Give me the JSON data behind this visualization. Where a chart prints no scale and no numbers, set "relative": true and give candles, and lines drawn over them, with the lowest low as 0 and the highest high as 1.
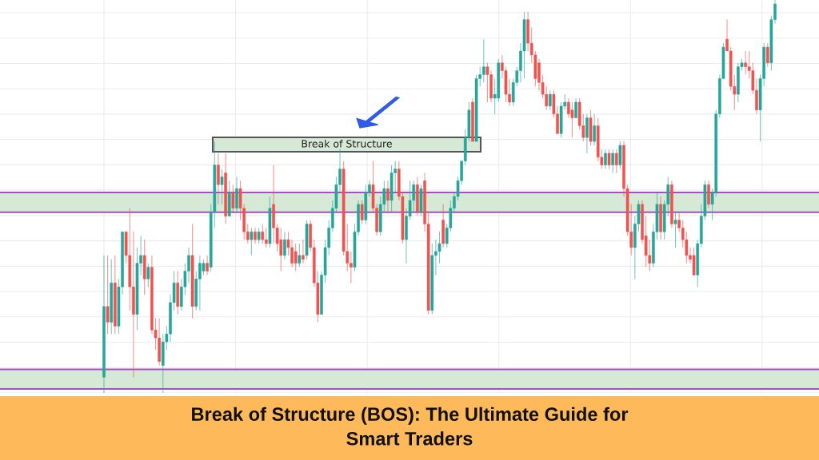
{
  "chart_data": {
    "type": "candlestick",
    "title": "Break of Structure (BOS): The Ultimate Guide for\nSmart Traders",
    "relative": true,
    "grid": true,
    "annotations": [
      "Break of Structure"
    ],
    "bands": [
      {
        "axis": "y",
        "from": 0.46,
        "to": 0.51,
        "color": "#d6e8d6"
      },
      {
        "axis": "y",
        "from": 0.01,
        "to": 0.06,
        "color": "#d6e8d6"
      }
    ],
    "ref_lines": [
      {
        "axis": "y",
        "value": 0.46,
        "color": "#a64fc4"
      },
      {
        "axis": "y",
        "value": 0.51,
        "color": "#a64fc4"
      },
      {
        "axis": "y",
        "value": 0.01,
        "color": "#a64fc4"
      },
      {
        "axis": "y",
        "value": 0.06,
        "color": "#a64fc4"
      }
    ],
    "categories": [
      null,
      null,
      null,
      null,
      null,
      null,
      null,
      null,
      null,
      null,
      null,
      null,
      null,
      null,
      null,
      null,
      null,
      null,
      null,
      null,
      null,
      null,
      null,
      null,
      null,
      null,
      null,
      null,
      null,
      null,
      null,
      null,
      null,
      null,
      null,
      null,
      null,
      null,
      null,
      null,
      null,
      null,
      null,
      null,
      null,
      null,
      null,
      null,
      null,
      null,
      null,
      null,
      null,
      null,
      null,
      null,
      null,
      null,
      null,
      null,
      null,
      null,
      null,
      null,
      null,
      null,
      null,
      null,
      null,
      null,
      null,
      null,
      null,
      null,
      null,
      null,
      null,
      null,
      null,
      null,
      null,
      null,
      null,
      null,
      null,
      null,
      null,
      null,
      null,
      null,
      null,
      null,
      null,
      null,
      null,
      null,
      null,
      null,
      null,
      null,
      null,
      null,
      null,
      null,
      null,
      null,
      null,
      null,
      null,
      null,
      null,
      null,
      null,
      null,
      null,
      null,
      null,
      null,
      null,
      null,
      null,
      null,
      null,
      null,
      null,
      null,
      null,
      null,
      null,
      null,
      null,
      null,
      null,
      null,
      null,
      null,
      null,
      null,
      null,
      null,
      null,
      null,
      null,
      null,
      null,
      null,
      null,
      null,
      null,
      null,
      null,
      null,
      null,
      null,
      null,
      null,
      null,
      null,
      null,
      null,
      null,
      null,
      null,
      null,
      null,
      null,
      null,
      null,
      null,
      null,
      null,
      null,
      null,
      null,
      null,
      null,
      null,
      null,
      null,
      null,
      null,
      null,
      null
    ],
    "ohlc": [
      [
        0.04,
        0.35,
        0,
        0.22
      ],
      [
        0.22,
        0.35,
        0.15,
        0.18
      ],
      [
        0.18,
        0.34,
        0.15,
        0.28
      ],
      [
        0.28,
        0.35,
        0.15,
        0.17
      ],
      [
        0.17,
        0.29,
        0.15,
        0.27
      ],
      [
        0.27,
        0.41,
        0.25,
        0.41
      ],
      [
        0.41,
        0.41,
        0.33,
        0.35
      ],
      [
        0.35,
        0.47,
        0.21,
        0.27
      ],
      [
        0.27,
        0.41,
        0.04,
        0.2
      ],
      [
        0.2,
        0.37,
        0.16,
        0.33
      ],
      [
        0.33,
        0.4,
        0.3,
        0.35
      ],
      [
        0.35,
        0.39,
        0.25,
        0.29
      ],
      [
        0.29,
        0.33,
        0.27,
        0.32
      ],
      [
        0.32,
        0.35,
        0.15,
        0.16
      ],
      [
        0.16,
        0.19,
        0.11,
        0.14
      ],
      [
        0.14,
        0.19,
        0.07,
        0.08
      ],
      [
        0.07,
        0.15,
        0,
        0.13
      ],
      [
        0.13,
        0.17,
        0.11,
        0.15
      ],
      [
        0.15,
        0.25,
        0.13,
        0.23
      ],
      [
        0.23,
        0.31,
        0.21,
        0.28
      ],
      [
        0.28,
        0.31,
        0.2,
        0.22
      ],
      [
        0.22,
        0.29,
        0.21,
        0.27
      ],
      [
        0.27,
        0.33,
        0.25,
        0.31
      ],
      [
        0.31,
        0.37,
        0.28,
        0.35
      ],
      [
        0.35,
        0.43,
        0.19,
        0.22
      ],
      [
        0.22,
        0.31,
        0.21,
        0.29
      ],
      [
        0.29,
        0.35,
        0.21,
        0.33
      ],
      [
        0.31,
        0.34,
        0.3,
        0.33
      ],
      [
        0.33,
        0.35,
        0.3,
        0.31
      ],
      [
        0.32,
        0.48,
        0.31,
        0.46
      ],
      [
        0.46,
        0.64,
        0.42,
        0.58
      ],
      [
        0.58,
        0.61,
        0.48,
        0.53
      ],
      [
        0.53,
        0.57,
        0.48,
        0.55
      ],
      [
        0.56,
        0.61,
        0.43,
        0.45
      ],
      [
        0.45,
        0.54,
        0.45,
        0.51
      ],
      [
        0.51,
        0.53,
        0.46,
        0.47
      ],
      [
        0.47,
        0.55,
        0.46,
        0.52
      ],
      [
        0.52,
        0.54,
        0.44,
        0.47
      ],
      [
        0.47,
        0.48,
        0.39,
        0.41
      ],
      [
        0.41,
        0.43,
        0.38,
        0.39
      ],
      [
        0.39,
        0.42,
        0.35,
        0.41
      ],
      [
        0.41,
        0.42,
        0.38,
        0.39
      ],
      [
        0.39,
        0.42,
        0.38,
        0.41
      ],
      [
        0.41,
        0.43,
        0.38,
        0.39
      ],
      [
        0.39,
        0.42,
        0.37,
        0.38
      ],
      [
        0.38,
        0.5,
        0.37,
        0.47
      ],
      [
        0.48,
        0.58,
        0.38,
        0.42
      ],
      [
        0.42,
        0.43,
        0.36,
        0.38
      ],
      [
        0.39,
        0.42,
        0.31,
        0.35
      ],
      [
        0.35,
        0.41,
        0.34,
        0.39
      ],
      [
        0.39,
        0.41,
        0.35,
        0.37
      ],
      [
        0.37,
        0.39,
        0.32,
        0.33
      ],
      [
        0.36,
        0.38,
        0.31,
        0.33
      ],
      [
        0.33,
        0.38,
        0.32,
        0.35
      ],
      [
        0.35,
        0.39,
        0.33,
        0.34
      ],
      [
        0.35,
        0.44,
        0.34,
        0.43
      ],
      [
        0.43,
        0.44,
        0.36,
        0.37
      ],
      [
        0.37,
        0.39,
        0.27,
        0.28
      ],
      [
        0.28,
        0.31,
        0.18,
        0.2
      ],
      [
        0.2,
        0.31,
        0.2,
        0.3
      ],
      [
        0.3,
        0.39,
        0.28,
        0.37
      ],
      [
        0.37,
        0.44,
        0.35,
        0.42
      ],
      [
        0.42,
        0.49,
        0.41,
        0.47
      ],
      [
        0.47,
        0.55,
        0.46,
        0.53
      ],
      [
        0.53,
        0.62,
        0.51,
        0.57
      ],
      [
        0.57,
        0.59,
        0.35,
        0.36
      ],
      [
        0.36,
        0.43,
        0.31,
        0.33
      ],
      [
        0.33,
        0.36,
        0.28,
        0.32
      ],
      [
        0.32,
        0.43,
        0.31,
        0.41
      ],
      [
        0.41,
        0.49,
        0.4,
        0.48
      ],
      [
        0.48,
        0.49,
        0.43,
        0.44
      ],
      [
        0.44,
        0.53,
        0.43,
        0.51
      ],
      [
        0.51,
        0.54,
        0.5,
        0.53
      ],
      [
        0.53,
        0.59,
        0.46,
        0.47
      ],
      [
        0.47,
        0.48,
        0.4,
        0.41
      ],
      [
        0.41,
        0.5,
        0.4,
        0.48
      ],
      [
        0.48,
        0.54,
        0.46,
        0.52
      ],
      [
        0.52,
        0.54,
        0.46,
        0.49
      ],
      [
        0.49,
        0.58,
        0.46,
        0.56
      ],
      [
        0.56,
        0.59,
        0.51,
        0.57
      ],
      [
        0.57,
        0.59,
        0.49,
        0.5
      ],
      [
        0.5,
        0.51,
        0.38,
        0.39
      ],
      [
        0.39,
        0.47,
        0.33,
        0.45
      ],
      [
        0.45,
        0.54,
        0.44,
        0.49
      ],
      [
        0.49,
        0.54,
        0.46,
        0.53
      ],
      [
        0.53,
        0.55,
        0.45,
        0.46
      ],
      [
        0.46,
        0.53,
        0.45,
        0.52
      ],
      [
        0.54,
        0.56,
        0.41,
        0.43
      ],
      [
        0.43,
        0.46,
        0.2,
        0.21
      ],
      [
        0.21,
        0.38,
        0.2,
        0.35
      ],
      [
        0.35,
        0.39,
        0.3,
        0.36
      ],
      [
        0.36,
        0.41,
        0.33,
        0.38
      ],
      [
        0.44,
        0.48,
        0.37,
        0.38
      ],
      [
        0.38,
        0.43,
        0.37,
        0.42
      ],
      [
        0.42,
        0.49,
        0.41,
        0.47
      ],
      [
        0.47,
        0.51,
        0.46,
        0.5
      ],
      [
        0.5,
        0.55,
        0.49,
        0.54
      ],
      [
        0.54,
        0.59,
        0.53,
        0.59
      ],
      [
        0.59,
        0.67,
        0.58,
        0.65
      ],
      [
        0.65,
        0.74,
        0.64,
        0.72
      ],
      [
        0.74,
        0.75,
        0.64,
        0.64
      ],
      [
        0.64,
        0.81,
        0.64,
        0.8
      ],
      [
        0.8,
        0.83,
        0.78,
        0.81
      ],
      [
        0.81,
        0.9,
        0.79,
        0.83
      ],
      [
        0.83,
        0.84,
        0.74,
        0.81
      ],
      [
        0.81,
        0.82,
        0.74,
        0.75
      ],
      [
        0.75,
        0.8,
        0.71,
        0.76
      ],
      [
        0.75,
        0.85,
        0.74,
        0.84
      ],
      [
        0.84,
        0.86,
        0.8,
        0.82
      ],
      [
        0.82,
        0.83,
        0.74,
        0.76
      ],
      [
        0.76,
        0.8,
        0.73,
        0.74
      ],
      [
        0.74,
        0.8,
        0.73,
        0.79
      ],
      [
        0.79,
        0.83,
        0.78,
        0.82
      ],
      [
        0.82,
        0.89,
        0.79,
        0.87
      ],
      [
        0.87,
        0.97,
        0.8,
        0.95
      ],
      [
        0.95,
        0.97,
        0.87,
        0.89
      ],
      [
        0.89,
        0.93,
        0.84,
        0.86
      ],
      [
        0.86,
        0.87,
        0.78,
        0.8
      ],
      [
        0.84,
        0.85,
        0.77,
        0.79
      ],
      [
        0.79,
        0.81,
        0.75,
        0.76
      ],
      [
        0.76,
        0.78,
        0.72,
        0.73
      ],
      [
        0.73,
        0.77,
        0.72,
        0.76
      ],
      [
        0.76,
        0.77,
        0.7,
        0.71
      ],
      [
        0.71,
        0.73,
        0.66,
        0.66
      ],
      [
        0.66,
        0.74,
        0.65,
        0.73
      ],
      [
        0.73,
        0.76,
        0.72,
        0.74
      ],
      [
        0.74,
        0.75,
        0.7,
        0.71
      ],
      [
        0.72,
        0.74,
        0.65,
        0.7
      ],
      [
        0.7,
        0.75,
        0.7,
        0.74
      ],
      [
        0.74,
        0.75,
        0.67,
        0.68
      ],
      [
        0.68,
        0.71,
        0.64,
        0.65
      ],
      [
        0.65,
        0.71,
        0.61,
        0.7
      ],
      [
        0.7,
        0.72,
        0.63,
        0.64
      ],
      [
        0.64,
        0.71,
        0.63,
        0.68
      ],
      [
        0.68,
        0.7,
        0.59,
        0.6
      ],
      [
        0.6,
        0.62,
        0.57,
        0.58
      ],
      [
        0.58,
        0.62,
        0.57,
        0.61
      ],
      [
        0.61,
        0.62,
        0.57,
        0.58
      ],
      [
        0.58,
        0.62,
        0.56,
        0.61
      ],
      [
        0.61,
        0.62,
        0.56,
        0.58
      ],
      [
        0.58,
        0.64,
        0.57,
        0.63
      ],
      [
        0.63,
        0.64,
        0.5,
        0.52
      ],
      [
        0.52,
        0.53,
        0.4,
        0.41
      ],
      [
        0.41,
        0.48,
        0.35,
        0.37
      ],
      [
        0.37,
        0.45,
        0.29,
        0.43
      ],
      [
        0.43,
        0.49,
        0.41,
        0.48
      ],
      [
        0.48,
        0.49,
        0.38,
        0.39
      ],
      [
        0.4,
        0.45,
        0.32,
        0.35
      ],
      [
        0.35,
        0.39,
        0.31,
        0.33
      ],
      [
        0.33,
        0.43,
        0.32,
        0.41
      ],
      [
        0.41,
        0.51,
        0.39,
        0.48
      ],
      [
        0.48,
        0.5,
        0.39,
        0.41
      ],
      [
        0.41,
        0.49,
        0.39,
        0.48
      ],
      [
        0.48,
        0.55,
        0.45,
        0.53
      ],
      [
        0.53,
        0.54,
        0.42,
        0.43
      ],
      [
        0.43,
        0.46,
        0.37,
        0.44
      ],
      [
        0.44,
        0.46,
        0.41,
        0.42
      ],
      [
        0.42,
        0.44,
        0.37,
        0.39
      ],
      [
        0.39,
        0.41,
        0.33,
        0.35
      ],
      [
        0.35,
        0.37,
        0.33,
        0.34
      ],
      [
        0.35,
        0.37,
        0.3,
        0.3
      ],
      [
        0.3,
        0.39,
        0.27,
        0.38
      ],
      [
        0.38,
        0.48,
        0.37,
        0.45
      ],
      [
        0.45,
        0.54,
        0.44,
        0.53
      ],
      [
        0.53,
        0.54,
        0.47,
        0.48
      ],
      [
        0.48,
        0.52,
        0.44,
        0.51
      ],
      [
        0.51,
        0.72,
        0.5,
        0.71
      ],
      [
        0.71,
        0.81,
        0.7,
        0.8
      ],
      [
        0.8,
        0.89,
        0.8,
        0.88
      ],
      [
        0.9,
        0.95,
        0.87,
        0.87
      ],
      [
        0.87,
        0.88,
        0.77,
        0.78
      ],
      [
        0.78,
        0.81,
        0.72,
        0.76
      ],
      [
        0.76,
        0.84,
        0.74,
        0.83
      ],
      [
        0.83,
        0.85,
        0.82,
        0.84
      ],
      [
        0.84,
        0.87,
        0.81,
        0.83
      ],
      [
        0.83,
        0.87,
        0.8,
        0.82
      ],
      [
        0.82,
        0.84,
        0.76,
        0.77
      ],
      [
        0.77,
        0.8,
        0.71,
        0.72
      ],
      [
        0.72,
        0.81,
        0.64,
        0.8
      ],
      [
        0.8,
        0.89,
        0.78,
        0.88
      ],
      [
        0.88,
        0.89,
        0.83,
        0.84
      ],
      [
        0.84,
        0.96,
        0.82,
        0.95
      ],
      [
        0.95,
        1,
        0.94,
        0.99
      ]
    ],
    "colors": [
      "#26a69a",
      "#ef5350",
      "#26a69a",
      "#ef5350",
      "#26a69a",
      "#26a69a",
      "#ef5350",
      "#ef5350",
      "#ef5350",
      "#26a69a",
      "#26a69a",
      "#ef5350",
      "#26a69a",
      "#ef5350",
      "#ef5350",
      "#ef5350",
      "#26a69a",
      "#26a69a",
      "#26a69a",
      "#26a69a",
      "#ef5350",
      "#26a69a",
      "#26a69a",
      "#26a69a",
      "#ef5350",
      "#26a69a",
      "#26a69a",
      "#26a69a",
      "#ef5350",
      "#26a69a",
      "#26a69a",
      "#ef5350",
      "#26a69a",
      "#ef5350",
      "#26a69a",
      "#ef5350",
      "#26a69a",
      "#ef5350",
      "#ef5350",
      "#ef5350",
      "#26a69a",
      "#ef5350",
      "#26a69a",
      "#ef5350",
      "#ef5350",
      "#26a69a",
      "#ef5350",
      "#ef5350",
      "#ef5350",
      "#26a69a",
      "#ef5350",
      "#ef5350",
      "#ef5350",
      "#26a69a",
      "#ef5350",
      "#26a69a",
      "#ef5350",
      "#ef5350",
      "#ef5350",
      "#26a69a",
      "#26a69a",
      "#26a69a",
      "#26a69a",
      "#26a69a",
      "#26a69a",
      "#ef5350",
      "#ef5350",
      "#ef5350",
      "#26a69a",
      "#26a69a",
      "#ef5350",
      "#26a69a",
      "#26a69a",
      "#ef5350",
      "#ef5350",
      "#26a69a",
      "#26a69a",
      "#ef5350",
      "#26a69a",
      "#26a69a",
      "#ef5350",
      "#ef5350",
      "#26a69a",
      "#26a69a",
      "#26a69a",
      "#ef5350",
      "#26a69a",
      "#ef5350",
      "#ef5350",
      "#26a69a",
      "#26a69a",
      "#26a69a",
      "#ef5350",
      "#26a69a",
      "#26a69a",
      "#26a69a",
      "#26a69a",
      "#26a69a",
      "#26a69a",
      "#26a69a",
      "#ef5350",
      "#26a69a",
      "#26a69a",
      "#26a69a",
      "#ef5350",
      "#ef5350",
      "#26a69a",
      "#26a69a",
      "#ef5350",
      "#ef5350",
      "#ef5350",
      "#26a69a",
      "#26a69a",
      "#26a69a",
      "#26a69a",
      "#ef5350",
      "#ef5350",
      "#ef5350",
      "#ef5350",
      "#ef5350",
      "#ef5350",
      "#26a69a",
      "#ef5350",
      "#ef5350",
      "#26a69a",
      "#26a69a",
      "#ef5350",
      "#ef5350",
      "#26a69a",
      "#ef5350",
      "#ef5350",
      "#26a69a",
      "#ef5350",
      "#26a69a",
      "#ef5350",
      "#ef5350",
      "#26a69a",
      "#ef5350",
      "#26a69a",
      "#ef5350",
      "#26a69a",
      "#ef5350",
      "#ef5350",
      "#ef5350",
      "#26a69a",
      "#26a69a",
      "#ef5350",
      "#ef5350",
      "#ef5350",
      "#26a69a",
      "#26a69a",
      "#ef5350",
      "#26a69a",
      "#26a69a",
      "#ef5350",
      "#26a69a",
      "#ef5350",
      "#ef5350",
      "#ef5350",
      "#ef5350",
      "#ef5350",
      "#26a69a",
      "#26a69a",
      "#26a69a",
      "#ef5350",
      "#26a69a",
      "#26a69a",
      "#26a69a",
      "#26a69a",
      "#ef5350",
      "#ef5350",
      "#ef5350",
      "#26a69a",
      "#26a69a",
      "#ef5350",
      "#ef5350",
      "#ef5350",
      "#ef5350",
      "#26a69a",
      "#26a69a",
      "#ef5350",
      "#26a69a",
      "#26a69a"
    ]
  }
}
